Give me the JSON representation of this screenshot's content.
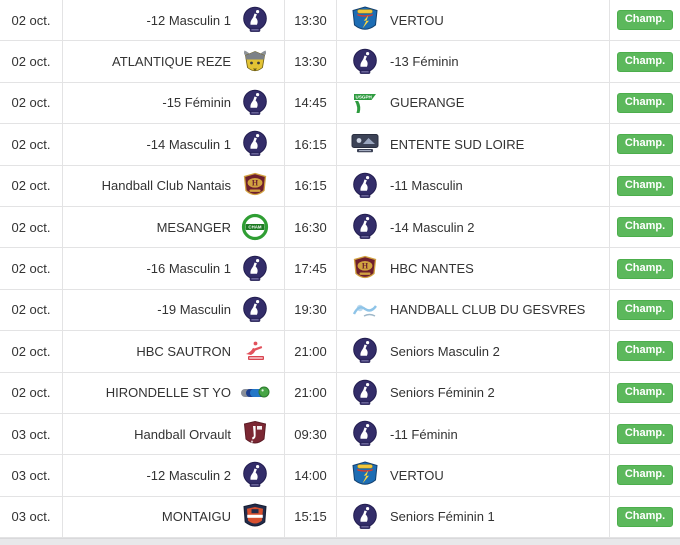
{
  "table": {
    "champ_label": "Champ.",
    "colors": {
      "button_green": "#5cb85c",
      "button_border": "#4cae4c",
      "row_border": "#e3e3e4",
      "text": "#333333",
      "footer_bar": "#e8e8ea"
    },
    "rows": [
      {
        "date": "02 oct.",
        "home_team": "-12 Masculin 1",
        "home_logo": "club-badge-icon",
        "time": "13:30",
        "away_logo": "vertou-shield-icon",
        "away_team": "VERTOU"
      },
      {
        "date": "02 oct.",
        "home_team": "ATLANTIQUE REZE",
        "home_logo": "atlantique-reze-icon",
        "time": "13:30",
        "away_logo": "club-badge-icon",
        "away_team": "-13 Féminin"
      },
      {
        "date": "02 oct.",
        "home_team": "-15 Féminin",
        "home_logo": "club-badge-icon",
        "time": "14:45",
        "away_logo": "guerange-icon",
        "away_team": "GUERANGE"
      },
      {
        "date": "02 oct.",
        "home_team": "-14 Masculin 1",
        "home_logo": "club-badge-icon",
        "time": "16:15",
        "away_logo": "entente-sud-loire-icon",
        "away_team": "ENTENTE SUD LOIRE"
      },
      {
        "date": "02 oct.",
        "home_team": "Handball Club Nantais",
        "home_logo": "hbc-nantes-icon",
        "time": "16:15",
        "away_logo": "club-badge-icon",
        "away_team": "-11 Masculin"
      },
      {
        "date": "02 oct.",
        "home_team": "MESANGER",
        "home_logo": "mesanger-icon",
        "time": "16:30",
        "away_logo": "club-badge-icon",
        "away_team": "-14 Masculin 2"
      },
      {
        "date": "02 oct.",
        "home_team": "-16 Masculin 1",
        "home_logo": "club-badge-icon",
        "time": "17:45",
        "away_logo": "hbc-nantes-icon",
        "away_team": "HBC NANTES"
      },
      {
        "date": "02 oct.",
        "home_team": "-19 Masculin",
        "home_logo": "club-badge-icon",
        "time": "19:30",
        "away_logo": "gesvres-icon",
        "away_team": "HANDBALL CLUB DU GESVRES"
      },
      {
        "date": "02 oct.",
        "home_team": "HBC SAUTRON",
        "home_logo": "hbc-sautron-icon",
        "time": "21:00",
        "away_logo": "club-badge-icon",
        "away_team": "Seniors Masculin 2"
      },
      {
        "date": "02 oct.",
        "home_team": "HIRONDELLE ST YO",
        "home_logo": "hirondelle-icon",
        "time": "21:00",
        "away_logo": "club-badge-icon",
        "away_team": "Seniors Féminin 2"
      },
      {
        "date": "03 oct.",
        "home_team": "Handball Orvault",
        "home_logo": "orvault-icon",
        "time": "09:30",
        "away_logo": "club-badge-icon",
        "away_team": "-11 Féminin"
      },
      {
        "date": "03 oct.",
        "home_team": "-12 Masculin 2",
        "home_logo": "club-badge-icon",
        "time": "14:00",
        "away_logo": "vertou-shield-icon",
        "away_team": "VERTOU"
      },
      {
        "date": "03 oct.",
        "home_team": "MONTAIGU",
        "home_logo": "montaigu-icon",
        "time": "15:15",
        "away_logo": "club-badge-icon",
        "away_team": "Seniors Féminin 1"
      }
    ]
  }
}
